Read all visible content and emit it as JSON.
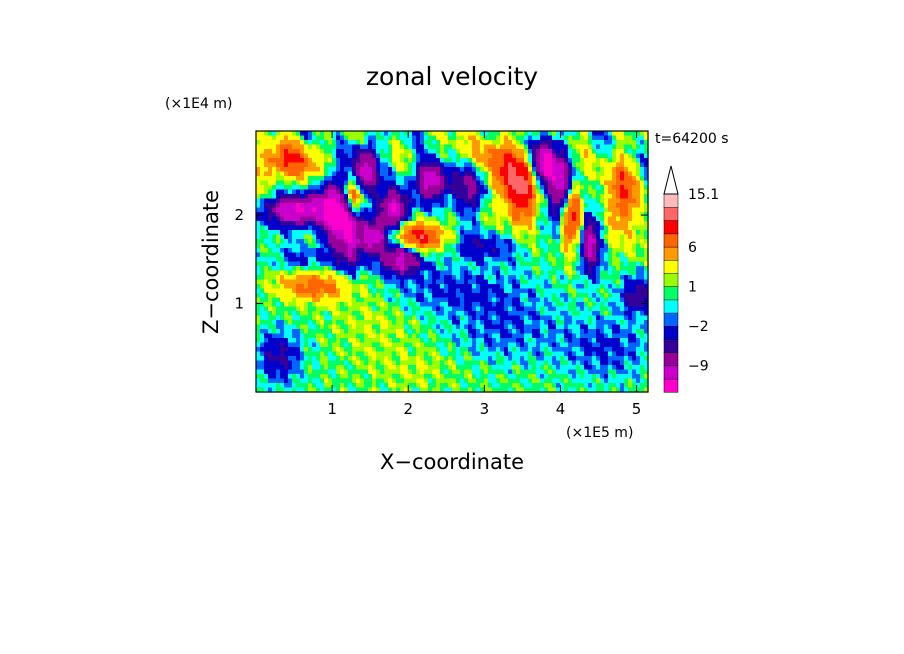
{
  "chart_data": {
    "type": "heatmap",
    "title": "zonal velocity",
    "xlabel": "X−coordinate",
    "ylabel": "Z−coordinate",
    "x_unit": "(×1E5 m)",
    "y_unit": "(×1E4 m)",
    "time_label": "t=64200 s",
    "xlim": [
      0,
      5.15
    ],
    "ylim": [
      0,
      2.95
    ],
    "x_ticks": [
      1,
      2,
      3,
      4,
      5
    ],
    "y_ticks": [
      1,
      2
    ],
    "x_tick_labels": [
      "1",
      "2",
      "3",
      "4",
      "5"
    ],
    "y_tick_labels": [
      "1",
      "2"
    ],
    "colorbar": {
      "levels": [
        -15,
        -12,
        -9,
        -6,
        -4,
        -2,
        -1,
        0,
        1,
        2,
        4,
        6,
        9,
        12,
        15.1
      ],
      "colors": [
        "#ff00cc",
        "#cc00cc",
        "#990099",
        "#330099",
        "#0000cc",
        "#0066ff",
        "#00ffff",
        "#00ff66",
        "#99ff00",
        "#ffff00",
        "#ff9900",
        "#ff6600",
        "#ff0000",
        "#ff6666",
        "#ffbbbb"
      ],
      "labels": [
        {
          "value": "15.1",
          "at_level": 15.1
        },
        {
          "value": "6",
          "at_level": 6
        },
        {
          "value": "1",
          "at_level": 1
        },
        {
          "value": "−2",
          "at_level": -2
        },
        {
          "value": "−9",
          "at_level": -9
        }
      ],
      "extend_top": true
    },
    "field_features": [
      {
        "x": 0.55,
        "z": 2.05,
        "sx": 0.3,
        "sz": 0.12,
        "amp": -14
      },
      {
        "x": 1.05,
        "z": 2.05,
        "sx": 0.12,
        "sz": 0.3,
        "amp": -14
      },
      {
        "x": 1.25,
        "z": 1.75,
        "sx": 0.1,
        "sz": 0.3,
        "amp": -10
      },
      {
        "x": 1.45,
        "z": 2.45,
        "sx": 0.1,
        "sz": 0.25,
        "amp": -13
      },
      {
        "x": 1.3,
        "z": 2.2,
        "sx": 0.12,
        "sz": 0.15,
        "amp": 12
      },
      {
        "x": 1.55,
        "z": 1.75,
        "sx": 0.12,
        "sz": 0.12,
        "amp": -12
      },
      {
        "x": 1.9,
        "z": 1.5,
        "sx": 0.2,
        "sz": 0.12,
        "amp": -11
      },
      {
        "x": 1.8,
        "z": 2.05,
        "sx": 0.15,
        "sz": 0.15,
        "amp": -12
      },
      {
        "x": 2.15,
        "z": 1.75,
        "sx": 0.25,
        "sz": 0.12,
        "amp": 10
      },
      {
        "x": 2.35,
        "z": 2.4,
        "sx": 0.18,
        "sz": 0.15,
        "amp": -14
      },
      {
        "x": 2.65,
        "z": 2.45,
        "sx": 0.2,
        "sz": 0.2,
        "amp": 9
      },
      {
        "x": 2.8,
        "z": 2.35,
        "sx": 0.2,
        "sz": 0.2,
        "amp": -13
      },
      {
        "x": 3.2,
        "z": 2.5,
        "sx": 0.2,
        "sz": 0.25,
        "amp": 9
      },
      {
        "x": 2.95,
        "z": 1.65,
        "sx": 0.35,
        "sz": 0.12,
        "amp": -4
      },
      {
        "x": 3.5,
        "z": 2.25,
        "sx": 0.15,
        "sz": 0.25,
        "amp": 10
      },
      {
        "x": 3.8,
        "z": 2.6,
        "sx": 0.1,
        "sz": 0.2,
        "amp": -14
      },
      {
        "x": 4.0,
        "z": 2.3,
        "sx": 0.1,
        "sz": 0.25,
        "amp": -13
      },
      {
        "x": 4.15,
        "z": 2.0,
        "sx": 0.1,
        "sz": 0.25,
        "amp": 11
      },
      {
        "x": 4.4,
        "z": 1.7,
        "sx": 0.1,
        "sz": 0.25,
        "amp": -10
      },
      {
        "x": 4.8,
        "z": 2.2,
        "sx": 0.15,
        "sz": 0.3,
        "amp": 8
      },
      {
        "x": 0.4,
        "z": 2.6,
        "sx": 0.3,
        "sz": 0.15,
        "amp": 8
      },
      {
        "x": 0.8,
        "z": 1.2,
        "sx": 0.35,
        "sz": 0.12,
        "amp": 7
      },
      {
        "x": 0.6,
        "z": 1.5,
        "sx": 0.3,
        "sz": 0.1,
        "amp": -3
      },
      {
        "x": 2.6,
        "z": 1.15,
        "sx": 0.7,
        "sz": 0.2,
        "amp": -3
      },
      {
        "x": 3.3,
        "z": 0.7,
        "sx": 0.5,
        "sz": 0.25,
        "amp": -2.5
      },
      {
        "x": 1.6,
        "z": 0.8,
        "sx": 0.4,
        "sz": 0.3,
        "amp": 1.5
      },
      {
        "x": 0.3,
        "z": 0.4,
        "sx": 0.2,
        "sz": 0.2,
        "amp": -5
      },
      {
        "x": 4.6,
        "z": 0.5,
        "sx": 0.4,
        "sz": 0.25,
        "amp": -3
      },
      {
        "x": 5.0,
        "z": 1.1,
        "sx": 0.15,
        "sz": 0.15,
        "amp": -6
      },
      {
        "x": 2.1,
        "z": 0.25,
        "sx": 0.4,
        "sz": 0.15,
        "amp": 1.2
      }
    ]
  }
}
